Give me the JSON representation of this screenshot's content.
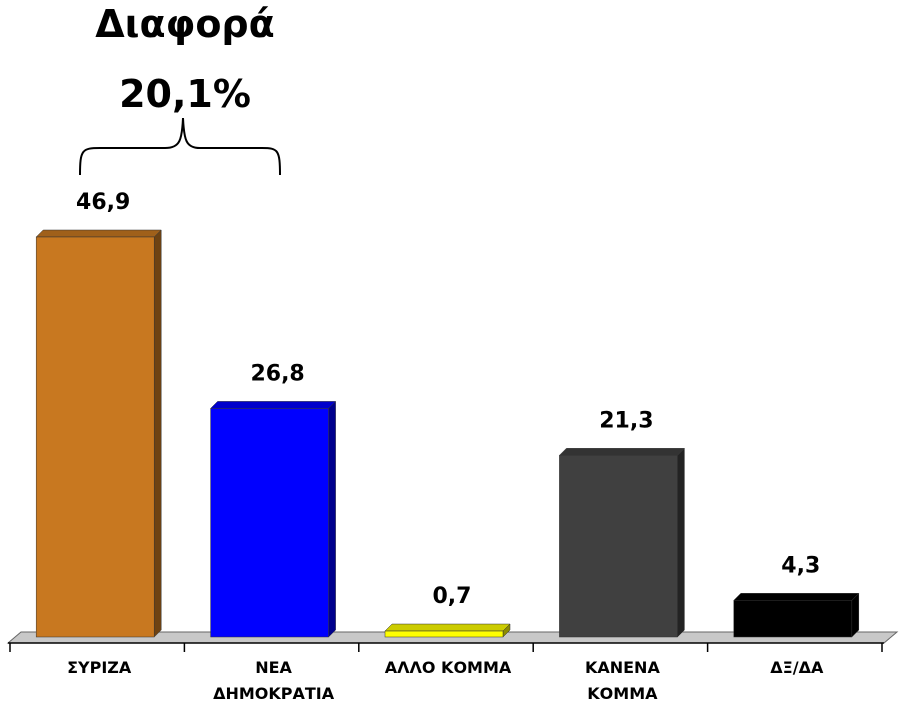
{
  "chart_data": {
    "type": "bar",
    "annotation": [
      "Διαφορά",
      "20,1%"
    ],
    "categories": [
      "ΣΥΡΙΖΑ",
      "ΝΕΑ\nΔΗΜΟΚΡΑΤΙΑ",
      "ΑΛΛΟ ΚΟΜΜΑ",
      "ΚΑΝΕΝΑ\nΚΟΜΜΑ",
      "ΔΞ/ΔΑ"
    ],
    "values": [
      46.9,
      26.8,
      0.7,
      21.3,
      4.3
    ],
    "value_labels": [
      "46,9",
      "26,8",
      "0,7",
      "21,3",
      "4,3"
    ],
    "colors": [
      "#c87820",
      "#0000ff",
      "#ffff00",
      "#404040",
      "#000000"
    ]
  }
}
